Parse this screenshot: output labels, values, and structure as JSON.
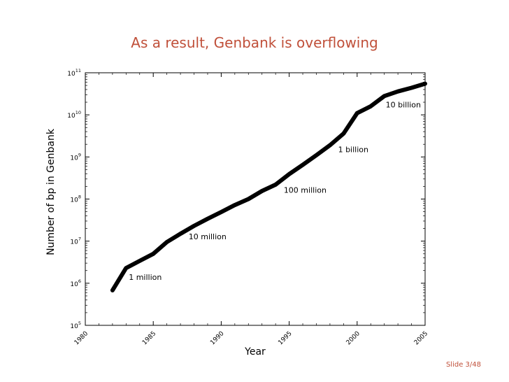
{
  "slide": {
    "title": "As a result, Genbank is overflowing",
    "footer_prefix": "Slide",
    "footer_page": "3/48",
    "accent_color": "#c0503a"
  },
  "chart_data": {
    "type": "line",
    "title": "",
    "xlabel": "Year",
    "ylabel": "Number of bp in Genbank",
    "xlim": [
      1980,
      2005
    ],
    "ylim": [
      100000,
      100000000000
    ],
    "yscale": "log",
    "x_ticks": [
      1980,
      1985,
      1990,
      1995,
      2000,
      2005
    ],
    "y_ticks": [
      {
        "value": 100000,
        "base": "10",
        "exp": "5"
      },
      {
        "value": 1000000,
        "base": "10",
        "exp": "6"
      },
      {
        "value": 10000000,
        "base": "10",
        "exp": "7"
      },
      {
        "value": 100000000,
        "base": "10",
        "exp": "8"
      },
      {
        "value": 1000000000,
        "base": "10",
        "exp": "9"
      },
      {
        "value": 10000000000,
        "base": "10",
        "exp": "10"
      },
      {
        "value": 100000000000,
        "base": "10",
        "exp": "11"
      }
    ],
    "grid": false,
    "series": [
      {
        "x": [
          1982,
          1983,
          1984,
          1985,
          1986,
          1987,
          1988,
          1989,
          1990,
          1991,
          1992,
          1993,
          1994,
          1995,
          1996,
          1997,
          1998,
          1999,
          2000,
          2001,
          2002,
          2003,
          2004,
          2005
        ],
        "y": [
          680000,
          2300000,
          3400000,
          5000000,
          9500000,
          15000000,
          23000000,
          34000000,
          49000000,
          72000000,
          100000000,
          155000000,
          220000000,
          390000000,
          650000000,
          1100000000,
          1900000000,
          3600000000,
          11000000000,
          16000000000,
          28000000000,
          36000000000,
          44000000000,
          55000000000
        ],
        "color": "#000000"
      }
    ],
    "annotations": [
      {
        "text": "1 million",
        "x": 1983.2,
        "y": 1200000
      },
      {
        "text": "10 million",
        "x": 1987.6,
        "y": 11000000
      },
      {
        "text": "100 million",
        "x": 1994.6,
        "y": 140000000
      },
      {
        "text": "1 billion",
        "x": 1998.6,
        "y": 1300000000
      },
      {
        "text": "10 billion",
        "x": 2002.1,
        "y": 15000000000
      }
    ]
  }
}
